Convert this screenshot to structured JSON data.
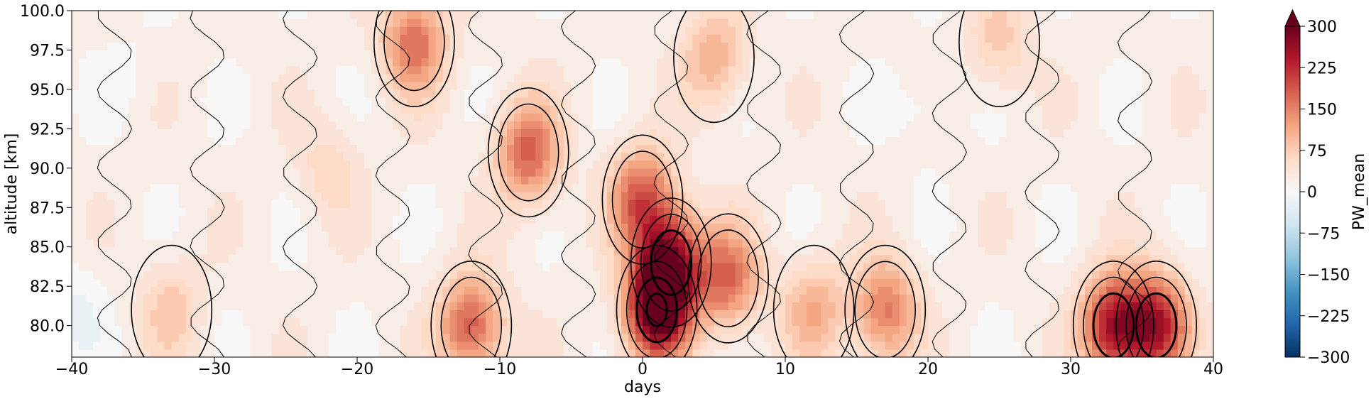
{
  "chart_data": {
    "type": "heatmap",
    "title": "",
    "xlabel": "days",
    "ylabel": "altitude [km]",
    "xlim": [
      -40,
      40
    ],
    "ylim": [
      78,
      100
    ],
    "x_ticks": [
      -40,
      -30,
      -20,
      -10,
      0,
      10,
      20,
      30,
      40
    ],
    "x_tick_labels": [
      "−40",
      "−30",
      "−20",
      "−10",
      "0",
      "10",
      "20",
      "30",
      "40"
    ],
    "y_ticks": [
      80.0,
      82.5,
      85.0,
      87.5,
      90.0,
      92.5,
      95.0,
      97.5,
      100.0
    ],
    "y_tick_labels": [
      "80.0",
      "82.5",
      "85.0",
      "87.5",
      "90.0",
      "92.5",
      "95.0",
      "97.5",
      "100.0"
    ],
    "colormap": "RdBu_r",
    "colorbar": {
      "label": "PW_mean",
      "range": [
        -300,
        300
      ],
      "extend": "max",
      "ticks": [
        300,
        225,
        150,
        75,
        0,
        -75,
        -150,
        -225,
        -300
      ],
      "tick_labels": [
        "300",
        "225",
        "150",
        "75",
        "0",
        "−75",
        "−150",
        "−225",
        "−300"
      ]
    },
    "hotspots": [
      {
        "day": 1,
        "alt": 81,
        "value": 290
      },
      {
        "day": 2,
        "alt": 84,
        "value": 230
      },
      {
        "day": 0,
        "alt": 88,
        "value": 170
      },
      {
        "day": 6,
        "alt": 83,
        "value": 150
      },
      {
        "day": -8,
        "alt": 91,
        "value": 160
      },
      {
        "day": -12,
        "alt": 80,
        "value": 170
      },
      {
        "day": 33,
        "alt": 80,
        "value": 230
      },
      {
        "day": 36,
        "alt": 80,
        "value": 220
      },
      {
        "day": -16,
        "alt": 98,
        "value": 150
      },
      {
        "day": -33,
        "alt": 81,
        "value": 60
      },
      {
        "day": -22,
        "alt": 90,
        "value": 45
      },
      {
        "day": 17,
        "alt": 81,
        "value": 140
      },
      {
        "day": 12,
        "alt": 81,
        "value": 90
      },
      {
        "day": 5,
        "alt": 97,
        "value": 90
      },
      {
        "day": 25,
        "alt": 98,
        "value": 60
      },
      {
        "day": 20,
        "alt": 94,
        "value": -25
      },
      {
        "day": -40,
        "alt": 81,
        "value": -30
      },
      {
        "day": -36,
        "alt": 96,
        "value": -12
      }
    ]
  }
}
